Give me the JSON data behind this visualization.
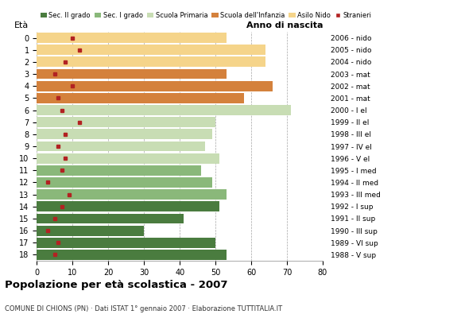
{
  "ages": [
    18,
    17,
    16,
    15,
    14,
    13,
    12,
    11,
    10,
    9,
    8,
    7,
    6,
    5,
    4,
    3,
    2,
    1,
    0
  ],
  "years": [
    "1988 - V sup",
    "1989 - VI sup",
    "1990 - III sup",
    "1991 - II sup",
    "1992 - I sup",
    "1993 - III med",
    "1994 - II med",
    "1995 - I med",
    "1996 - V el",
    "1997 - IV el",
    "1998 - III el",
    "1999 - II el",
    "2000 - I el",
    "2001 - mat",
    "2002 - mat",
    "2003 - mat",
    "2004 - nido",
    "2005 - nido",
    "2006 - nido"
  ],
  "bar_values": [
    53,
    50,
    30,
    41,
    51,
    53,
    49,
    46,
    51,
    47,
    49,
    50,
    71,
    58,
    66,
    53,
    64,
    64,
    53
  ],
  "stranieri": [
    5,
    6,
    3,
    5,
    7,
    9,
    3,
    7,
    8,
    6,
    8,
    12,
    7,
    6,
    10,
    5,
    8,
    12,
    10
  ],
  "school_colors": [
    "#4a7c3f",
    "#4a7c3f",
    "#4a7c3f",
    "#4a7c3f",
    "#4a7c3f",
    "#8ab87a",
    "#8ab87a",
    "#8ab87a",
    "#c8ddb4",
    "#c8ddb4",
    "#c8ddb4",
    "#c8ddb4",
    "#c8ddb4",
    "#d4813c",
    "#d4813c",
    "#d4813c",
    "#f5d48a",
    "#f5d48a",
    "#f5d48a"
  ],
  "legend_labels": [
    "Sec. II grado",
    "Sec. I grado",
    "Scuola Primaria",
    "Scuola dell'Infanzia",
    "Asilo Nido",
    "Stranieri"
  ],
  "legend_colors": [
    "#4a7c3f",
    "#8ab87a",
    "#c8ddb4",
    "#d4813c",
    "#f5d48a",
    "#b22222"
  ],
  "title": "Popolazione per età scolastica - 2007",
  "subtitle": "COMUNE DI CHIONS (PN) · Dati ISTAT 1° gennaio 2007 · Elaborazione TUTTITALIA.IT",
  "xlabel_eta": "Età",
  "xlabel_anno": "Anno di nascita",
  "xlim": [
    0,
    80
  ],
  "xticks": [
    0,
    10,
    20,
    30,
    40,
    50,
    60,
    70,
    80
  ],
  "stranieri_color": "#b22222",
  "background_color": "#ffffff"
}
